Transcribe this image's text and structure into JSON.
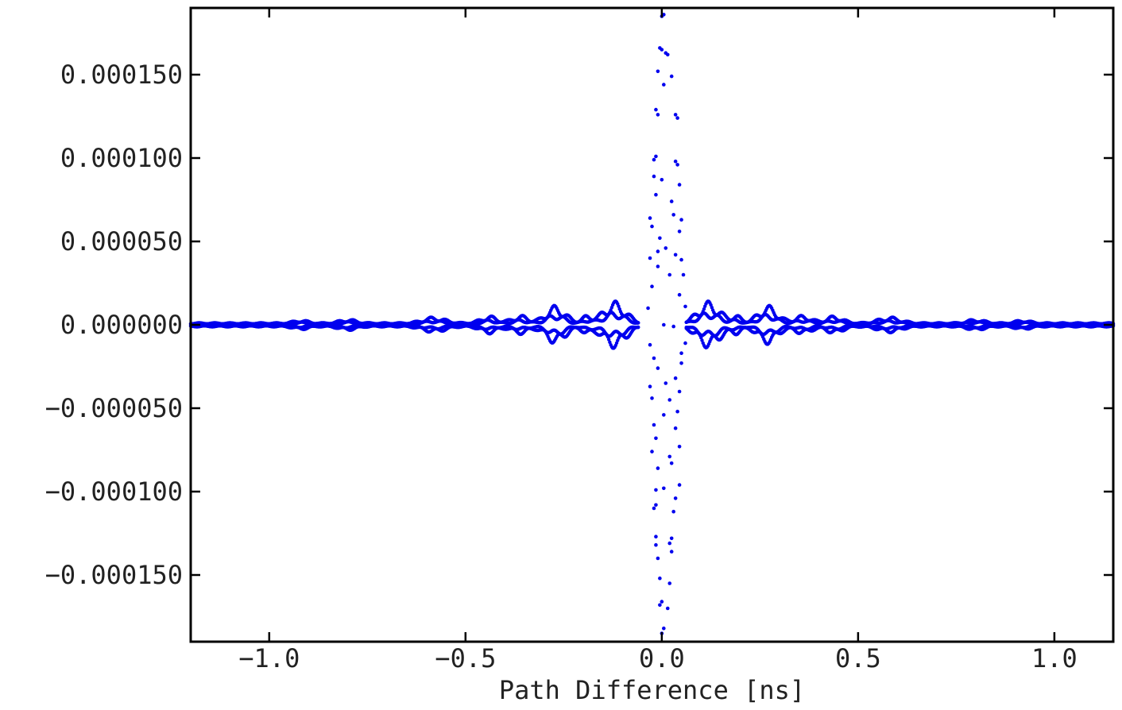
{
  "chart_data": {
    "type": "scatter",
    "title": "",
    "xlabel": "Path Difference [ns]",
    "ylabel": "",
    "xlim": [
      -1.2,
      1.15
    ],
    "ylim": [
      -0.00019,
      0.00019
    ],
    "x_ticks": [
      -1.0,
      -0.5,
      0.0,
      0.5,
      1.0
    ],
    "x_tick_labels": [
      "−1.0",
      "−0.5",
      "0.0",
      "0.5",
      "1.0"
    ],
    "y_ticks": [
      0.00015,
      0.0001,
      5e-05,
      0.0,
      -5e-05,
      -0.0001,
      -0.00015
    ],
    "y_tick_labels": [
      "0.000150",
      "0.000100",
      "0.000050",
      "0.000000",
      "−0.000050",
      "−0.000100",
      "−0.000150"
    ],
    "grid": false,
    "legend": "none",
    "marker_color": "#0000ee",
    "series": [
      {
        "points": [
          [
            0.0,
            0.000185
          ],
          [
            0.005,
            0.000186
          ],
          [
            -0.005,
            0.000166
          ],
          [
            0.0,
            0.000165
          ],
          [
            0.01,
            0.000163
          ],
          [
            0.015,
            0.000162
          ],
          [
            -0.01,
            0.000152
          ],
          [
            0.025,
            0.000149
          ],
          [
            0.005,
            0.000144
          ],
          [
            -0.015,
            0.000129
          ],
          [
            0.035,
            0.000126
          ],
          [
            -0.01,
            0.000126
          ],
          [
            0.04,
            0.000124
          ],
          [
            -0.02,
            9.9e-05
          ],
          [
            -0.015,
            0.000101
          ],
          [
            0.035,
            9.8e-05
          ],
          [
            0.04,
            9.6e-05
          ],
          [
            -0.02,
            8.9e-05
          ],
          [
            0.0,
            8.7e-05
          ],
          [
            0.045,
            8.4e-05
          ],
          [
            -0.015,
            7.8e-05
          ],
          [
            0.025,
            7.4e-05
          ],
          [
            0.03,
            6.6e-05
          ],
          [
            -0.03,
            6.4e-05
          ],
          [
            0.05,
            6.3e-05
          ],
          [
            -0.025,
            5.9e-05
          ],
          [
            -0.005,
            5.2e-05
          ],
          [
            0.045,
            5.6e-05
          ],
          [
            0.01,
            4.6e-05
          ],
          [
            -0.01,
            4.4e-05
          ],
          [
            0.035,
            4.2e-05
          ],
          [
            0.05,
            3.9e-05
          ],
          [
            -0.03,
            4e-05
          ],
          [
            -0.01,
            3.5e-05
          ],
          [
            0.02,
            3e-05
          ],
          [
            0.055,
            3e-05
          ],
          [
            -0.025,
            2.3e-05
          ],
          [
            0.045,
            1.8e-05
          ],
          [
            -0.035,
            1e-05
          ],
          [
            0.06,
            1.1e-05
          ],
          [
            0.005,
            0.0
          ],
          [
            0.03,
            -1e-06
          ],
          [
            0.0,
            -0.000185
          ],
          [
            0.005,
            -0.000182
          ],
          [
            -0.005,
            -0.000168
          ],
          [
            0.0,
            -0.000166
          ],
          [
            0.015,
            -0.00017
          ],
          [
            -0.005,
            -0.000152
          ],
          [
            0.02,
            -0.000155
          ],
          [
            -0.015,
            -0.000132
          ],
          [
            0.02,
            -0.000131
          ],
          [
            0.025,
            -0.000136
          ],
          [
            -0.015,
            -0.000127
          ],
          [
            0.025,
            -0.000128
          ],
          [
            -0.01,
            -0.00014
          ],
          [
            -0.02,
            -0.00011
          ],
          [
            -0.015,
            -0.000108
          ],
          [
            0.035,
            -0.000104
          ],
          [
            0.03,
            -0.000112
          ],
          [
            -0.015,
            -9.9e-05
          ],
          [
            0.005,
            -9.8e-05
          ],
          [
            0.045,
            -9.6e-05
          ],
          [
            -0.01,
            -8.6e-05
          ],
          [
            0.02,
            -7.9e-05
          ],
          [
            0.025,
            -8.3e-05
          ],
          [
            -0.025,
            -7.6e-05
          ],
          [
            0.045,
            -7.3e-05
          ],
          [
            -0.015,
            -6.8e-05
          ],
          [
            0.035,
            -6.2e-05
          ],
          [
            -0.02,
            -6e-05
          ],
          [
            0.005,
            -5.4e-05
          ],
          [
            0.04,
            -5.2e-05
          ],
          [
            -0.025,
            -4.4e-05
          ],
          [
            0.02,
            -4.5e-05
          ],
          [
            0.045,
            -4e-05
          ],
          [
            -0.03,
            -3.7e-05
          ],
          [
            0.01,
            -3.5e-05
          ],
          [
            0.035,
            -3.2e-05
          ],
          [
            -0.01,
            -2.6e-05
          ],
          [
            0.05,
            -2.3e-05
          ],
          [
            -0.02,
            -2e-05
          ],
          [
            0.05,
            -1.7e-05
          ],
          [
            -0.03,
            -1.2e-05
          ],
          [
            0.06,
            -1.1e-05
          ]
        ]
      }
    ]
  }
}
